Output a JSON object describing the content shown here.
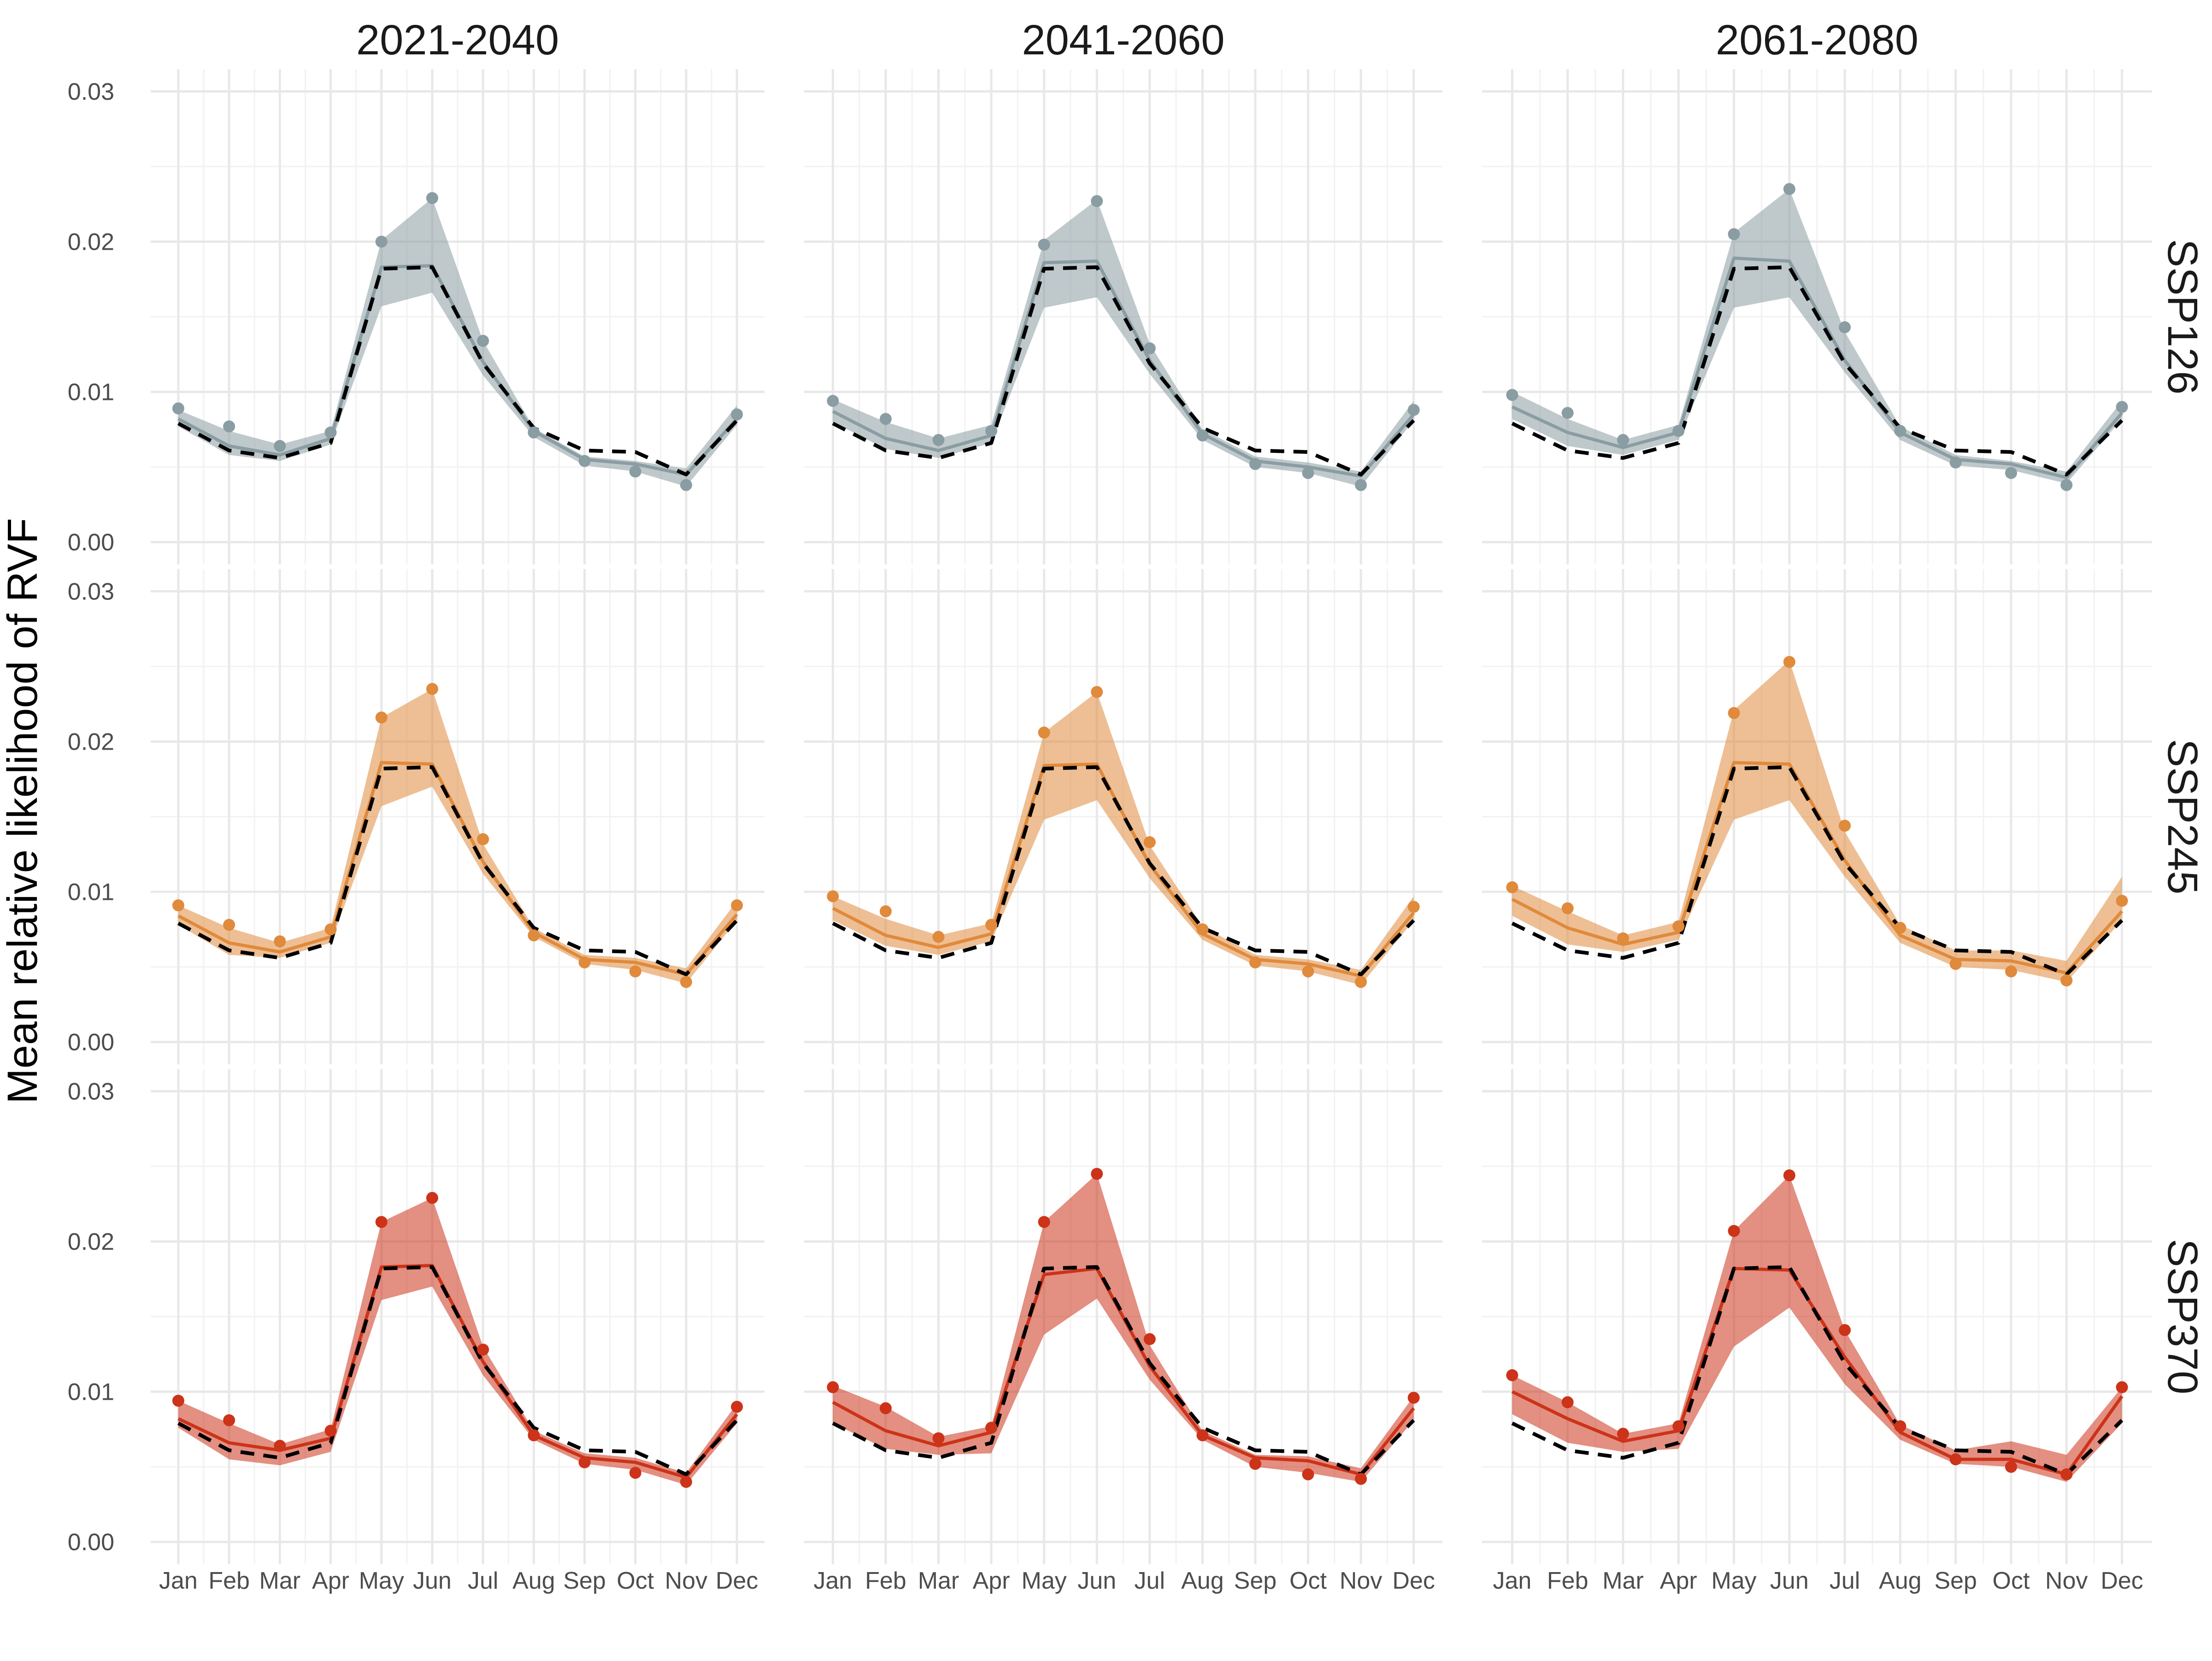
{
  "chart_data": {
    "type": "line",
    "ylabel": "Mean relative likelihood of RVF",
    "xlabel": "",
    "categories": [
      "Jan",
      "Feb",
      "Mar",
      "Apr",
      "May",
      "Jun",
      "Jul",
      "Aug",
      "Sep",
      "Oct",
      "Nov",
      "Dec"
    ],
    "ylim": [
      0.0,
      0.03
    ],
    "yticks": [
      0.0,
      0.01,
      0.02,
      0.03
    ],
    "ytick_labels": [
      "0.00",
      "0.01",
      "0.02",
      "0.03"
    ],
    "grid": true,
    "column_facets": [
      "2021-2040",
      "2041-2060",
      "2061-2080"
    ],
    "row_facets": [
      "SSP126",
      "SSP245",
      "SSP370"
    ],
    "colors": {
      "SSP126": "#8a9da3",
      "SSP245": "#e08a3c",
      "SSP370": "#cc3319",
      "baseline": "#000000"
    },
    "baseline": {
      "style": "dashed",
      "values": [
        0.0079,
        0.0061,
        0.0056,
        0.0066,
        0.0182,
        0.0183,
        0.0119,
        0.0076,
        0.0061,
        0.006,
        0.0045,
        0.0081
      ]
    },
    "panels": [
      {
        "row": "SSP126",
        "col": "2021-2040",
        "points": [
          0.0089,
          0.0077,
          0.0064,
          0.0073,
          0.02,
          0.0229,
          0.0134,
          0.0073,
          0.0054,
          0.0047,
          0.0038,
          0.0085
        ],
        "line": [
          0.0082,
          0.0064,
          0.0058,
          0.0069,
          0.0183,
          0.0184,
          0.012,
          0.0074,
          0.0055,
          0.0052,
          0.0045,
          0.0082
        ],
        "lower": [
          0.0077,
          0.0058,
          0.0054,
          0.0065,
          0.0157,
          0.0166,
          0.0111,
          0.007,
          0.0051,
          0.0047,
          0.0037,
          0.0078
        ],
        "upper": [
          0.0088,
          0.0074,
          0.0065,
          0.0074,
          0.0201,
          0.0229,
          0.0134,
          0.0076,
          0.0057,
          0.0054,
          0.0049,
          0.0091
        ]
      },
      {
        "row": "SSP126",
        "col": "2041-2060",
        "points": [
          0.0094,
          0.0082,
          0.0068,
          0.0074,
          0.0198,
          0.0227,
          0.0129,
          0.0071,
          0.0052,
          0.0046,
          0.0038,
          0.0088
        ],
        "line": [
          0.0087,
          0.0069,
          0.0061,
          0.0071,
          0.0186,
          0.0187,
          0.0121,
          0.0072,
          0.0054,
          0.005,
          0.0044,
          0.0085
        ],
        "lower": [
          0.008,
          0.0062,
          0.0056,
          0.0066,
          0.0156,
          0.0163,
          0.0112,
          0.0068,
          0.005,
          0.0046,
          0.0037,
          0.0081
        ],
        "upper": [
          0.0095,
          0.008,
          0.0069,
          0.0078,
          0.0201,
          0.0228,
          0.0132,
          0.0075,
          0.0057,
          0.0053,
          0.0047,
          0.0094
        ]
      },
      {
        "row": "SSP126",
        "col": "2061-2080",
        "points": [
          0.0098,
          0.0086,
          0.0068,
          0.0074,
          0.0205,
          0.0235,
          0.0143,
          0.0074,
          0.0053,
          0.0046,
          0.0038,
          0.009
        ],
        "line": [
          0.009,
          0.0073,
          0.0063,
          0.0073,
          0.0189,
          0.0187,
          0.0121,
          0.0073,
          0.0055,
          0.0052,
          0.0043,
          0.0086
        ],
        "lower": [
          0.0082,
          0.0064,
          0.0058,
          0.0068,
          0.0156,
          0.0163,
          0.0113,
          0.0068,
          0.0051,
          0.0048,
          0.0039,
          0.0082
        ],
        "upper": [
          0.01,
          0.0082,
          0.0068,
          0.0078,
          0.0206,
          0.0235,
          0.014,
          0.0077,
          0.0058,
          0.0054,
          0.0047,
          0.0094
        ]
      },
      {
        "row": "SSP245",
        "col": "2021-2040",
        "points": [
          0.0091,
          0.0078,
          0.0067,
          0.0075,
          0.0216,
          0.0235,
          0.0135,
          0.0071,
          0.0053,
          0.0047,
          0.004,
          0.0091
        ],
        "line": [
          0.0084,
          0.0066,
          0.006,
          0.007,
          0.0186,
          0.0185,
          0.012,
          0.0073,
          0.0055,
          0.0053,
          0.0045,
          0.0085
        ],
        "lower": [
          0.0078,
          0.0058,
          0.0056,
          0.0066,
          0.0157,
          0.017,
          0.0112,
          0.007,
          0.0052,
          0.0048,
          0.0039,
          0.0081
        ],
        "upper": [
          0.0091,
          0.0076,
          0.0066,
          0.0076,
          0.0216,
          0.0235,
          0.0132,
          0.0076,
          0.0058,
          0.0056,
          0.0049,
          0.0094
        ]
      },
      {
        "row": "SSP245",
        "col": "2041-2060",
        "points": [
          0.0097,
          0.0087,
          0.007,
          0.0078,
          0.0206,
          0.0233,
          0.0133,
          0.0075,
          0.0053,
          0.0047,
          0.004,
          0.009
        ],
        "line": [
          0.0089,
          0.0071,
          0.0063,
          0.0072,
          0.0184,
          0.0185,
          0.0118,
          0.0072,
          0.0055,
          0.0052,
          0.0044,
          0.0086
        ],
        "lower": [
          0.0081,
          0.0064,
          0.0058,
          0.0067,
          0.0148,
          0.0161,
          0.0109,
          0.0068,
          0.0051,
          0.0047,
          0.0038,
          0.0081
        ],
        "upper": [
          0.0097,
          0.0082,
          0.0071,
          0.0079,
          0.0206,
          0.0233,
          0.0131,
          0.0077,
          0.0058,
          0.0055,
          0.0048,
          0.0097
        ]
      },
      {
        "row": "SSP245",
        "col": "2061-2080",
        "points": [
          0.0103,
          0.0089,
          0.0069,
          0.0077,
          0.0219,
          0.0253,
          0.0144,
          0.0076,
          0.0052,
          0.0047,
          0.0041,
          0.0094
        ],
        "line": [
          0.0095,
          0.0076,
          0.0065,
          0.0073,
          0.0186,
          0.0185,
          0.0121,
          0.0071,
          0.0055,
          0.0054,
          0.0046,
          0.0087
        ],
        "lower": [
          0.0084,
          0.0065,
          0.006,
          0.0068,
          0.0148,
          0.0161,
          0.011,
          0.0066,
          0.005,
          0.0048,
          0.004,
          0.0081
        ],
        "upper": [
          0.0104,
          0.0087,
          0.0071,
          0.008,
          0.0221,
          0.0254,
          0.014,
          0.0078,
          0.0061,
          0.0061,
          0.0054,
          0.011
        ]
      },
      {
        "row": "SSP370",
        "col": "2021-2040",
        "points": [
          0.0094,
          0.0081,
          0.0064,
          0.0074,
          0.0213,
          0.0229,
          0.0128,
          0.0071,
          0.0053,
          0.0046,
          0.004,
          0.009
        ],
        "line": [
          0.0082,
          0.0066,
          0.0061,
          0.0069,
          0.0183,
          0.0184,
          0.012,
          0.0071,
          0.0056,
          0.0053,
          0.0043,
          0.0085
        ],
        "lower": [
          0.0076,
          0.0055,
          0.0051,
          0.006,
          0.0161,
          0.017,
          0.0111,
          0.0068,
          0.0052,
          0.0048,
          0.0038,
          0.0079
        ],
        "upper": [
          0.0094,
          0.0079,
          0.0065,
          0.0075,
          0.0213,
          0.0229,
          0.013,
          0.0074,
          0.0059,
          0.0056,
          0.0046,
          0.0092
        ]
      },
      {
        "row": "SSP370",
        "col": "2041-2060",
        "points": [
          0.0103,
          0.0089,
          0.0069,
          0.0076,
          0.0213,
          0.0245,
          0.0135,
          0.0071,
          0.0052,
          0.0045,
          0.0042,
          0.0096
        ],
        "line": [
          0.0093,
          0.0074,
          0.0064,
          0.0073,
          0.0178,
          0.0182,
          0.0117,
          0.0071,
          0.0056,
          0.0054,
          0.0045,
          0.0089
        ],
        "lower": [
          0.0079,
          0.0062,
          0.0058,
          0.0059,
          0.0138,
          0.0162,
          0.0108,
          0.0068,
          0.005,
          0.0046,
          0.004,
          0.0081
        ],
        "upper": [
          0.0104,
          0.009,
          0.007,
          0.0077,
          0.0213,
          0.0245,
          0.0131,
          0.0074,
          0.0058,
          0.0057,
          0.0049,
          0.0097
        ]
      },
      {
        "row": "SSP370",
        "col": "2061-2080",
        "points": [
          0.0111,
          0.0093,
          0.0072,
          0.0077,
          0.0207,
          0.0244,
          0.0141,
          0.0077,
          0.0055,
          0.005,
          0.0045,
          0.0103
        ],
        "line": [
          0.01,
          0.0082,
          0.0067,
          0.0074,
          0.0182,
          0.0181,
          0.0123,
          0.0073,
          0.0055,
          0.0055,
          0.0045,
          0.0097
        ],
        "lower": [
          0.0085,
          0.0066,
          0.006,
          0.0062,
          0.013,
          0.0156,
          0.0105,
          0.0068,
          0.0052,
          0.005,
          0.004,
          0.0079
        ],
        "upper": [
          0.0111,
          0.0093,
          0.0072,
          0.0079,
          0.0207,
          0.0244,
          0.0141,
          0.0078,
          0.0061,
          0.0067,
          0.0058,
          0.0103
        ]
      }
    ]
  }
}
